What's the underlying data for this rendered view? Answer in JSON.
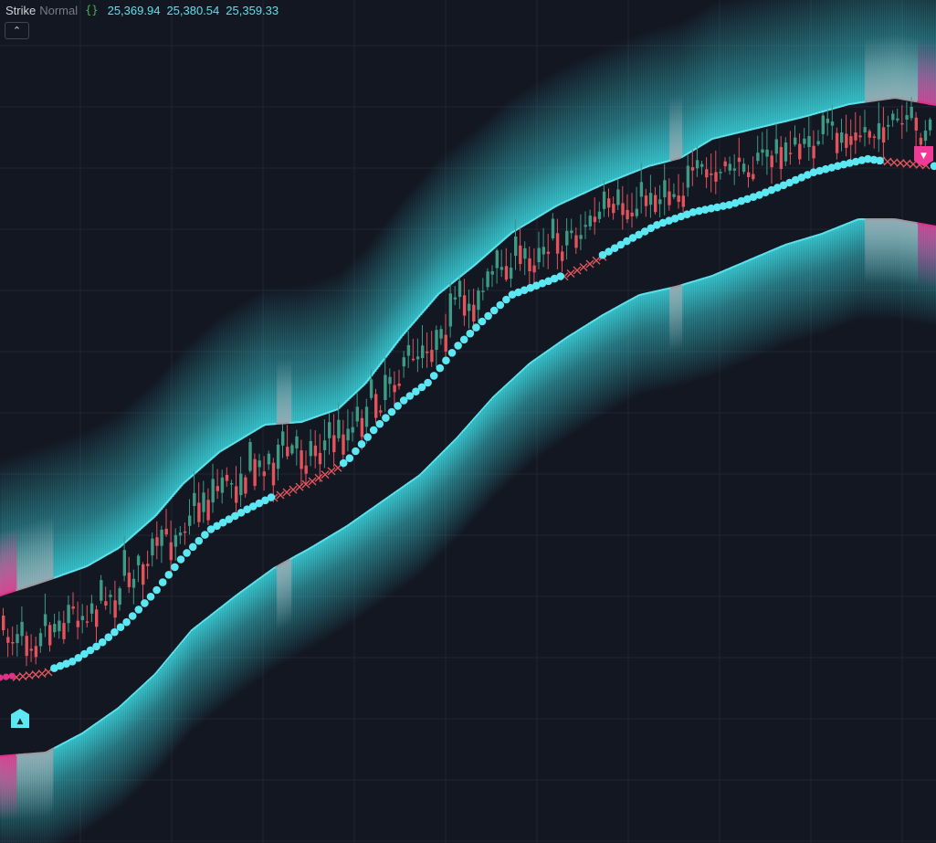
{
  "legend": {
    "indicator_name": "Strike",
    "indicator_mode": "Normal",
    "settings_icon": "braces-icon",
    "values": [
      "25,369.94",
      "25,380.54",
      "25,359.33"
    ]
  },
  "toolbar": {
    "collapse_icon": "chevron-up-icon"
  },
  "colors": {
    "background": "#131722",
    "grid": "#1f2431",
    "band_line": "#5ce0ea",
    "band_fill": "#3ad3dc",
    "trail_dot": "#5ce8f2",
    "bull_candle": "#3d9a85",
    "bear_candle": "#e2535c",
    "cross_marker": "#e0555d",
    "neutral_band": "#9a9aa0",
    "bear_band": "#e0308a",
    "buy_marker": "#5ce8f2",
    "sell_marker": "#f03a98"
  },
  "chart_data": {
    "type": "candlestick",
    "title": "Strike Normal",
    "price_readouts": [
      25369.94,
      25380.54,
      25359.33
    ],
    "grid": true,
    "legend_position": "top-left",
    "series": [
      {
        "name": "upper_band",
        "anchors": [
          [
            0,
            652
          ],
          [
            50,
            636
          ],
          [
            95,
            620
          ],
          [
            130,
            600
          ],
          [
            170,
            565
          ],
          [
            200,
            530
          ],
          [
            240,
            495
          ],
          [
            290,
            465
          ],
          [
            330,
            462
          ],
          [
            370,
            448
          ],
          [
            400,
            420
          ],
          [
            440,
            368
          ],
          [
            480,
            322
          ],
          [
            520,
            290
          ],
          [
            560,
            255
          ],
          [
            610,
            225
          ],
          [
            660,
            202
          ],
          [
            710,
            182
          ],
          [
            745,
            173
          ],
          [
            780,
            152
          ],
          [
            830,
            140
          ],
          [
            880,
            128
          ],
          [
            930,
            114
          ],
          [
            980,
            107
          ],
          [
            1025,
            115
          ]
        ]
      },
      {
        "name": "lower_band",
        "anchors": [
          [
            0,
            828
          ],
          [
            50,
            824
          ],
          [
            90,
            803
          ],
          [
            130,
            775
          ],
          [
            170,
            738
          ],
          [
            210,
            690
          ],
          [
            260,
            651
          ],
          [
            300,
            622
          ],
          [
            340,
            600
          ],
          [
            380,
            576
          ],
          [
            420,
            548
          ],
          [
            460,
            520
          ],
          [
            500,
            480
          ],
          [
            540,
            435
          ],
          [
            580,
            398
          ],
          [
            620,
            370
          ],
          [
            660,
            345
          ],
          [
            700,
            323
          ],
          [
            740,
            314
          ],
          [
            780,
            302
          ],
          [
            820,
            285
          ],
          [
            860,
            268
          ],
          [
            900,
            256
          ],
          [
            940,
            240
          ],
          [
            980,
            240
          ],
          [
            1025,
            248
          ]
        ]
      },
      {
        "name": "trail",
        "anchors": [
          [
            0,
            742
          ],
          [
            50,
            735
          ],
          [
            80,
            724
          ],
          [
            110,
            705
          ],
          [
            140,
            680
          ],
          [
            170,
            648
          ],
          [
            200,
            610
          ],
          [
            230,
            580
          ],
          [
            270,
            558
          ],
          [
            300,
            543
          ],
          [
            340,
            526
          ],
          [
            380,
            505
          ],
          [
            410,
            470
          ],
          [
            440,
            440
          ],
          [
            470,
            418
          ],
          [
            500,
            380
          ],
          [
            530,
            350
          ],
          [
            560,
            323
          ],
          [
            600,
            308
          ],
          [
            620,
            300
          ],
          [
            650,
            285
          ],
          [
            690,
            262
          ],
          [
            720,
            246
          ],
          [
            760,
            232
          ],
          [
            800,
            224
          ],
          [
            830,
            214
          ],
          [
            860,
            202
          ],
          [
            890,
            189
          ],
          [
            920,
            181
          ],
          [
            950,
            174
          ],
          [
            980,
            178
          ],
          [
            1025,
            182
          ]
        ]
      }
    ],
    "bias_zones": [
      {
        "state": "neutral",
        "start": 0,
        "end": 58
      },
      {
        "state": "bear",
        "start": 0,
        "end": 18
      },
      {
        "state": "neutral",
        "start": 303,
        "end": 318
      },
      {
        "state": "neutral",
        "start": 733,
        "end": 746
      },
      {
        "state": "neutral",
        "start": 947,
        "end": 1005
      },
      {
        "state": "bear",
        "start": 1005,
        "end": 1025
      }
    ],
    "cross_markers": [
      {
        "start": 18,
        "end": 55
      },
      {
        "start": 300,
        "end": 370
      },
      {
        "start": 618,
        "end": 660
      },
      {
        "start": 965,
        "end": 1018
      }
    ],
    "signals": [
      {
        "type": "buy",
        "symbol": "▲"
      },
      {
        "type": "sell",
        "symbol": "▼"
      }
    ]
  }
}
